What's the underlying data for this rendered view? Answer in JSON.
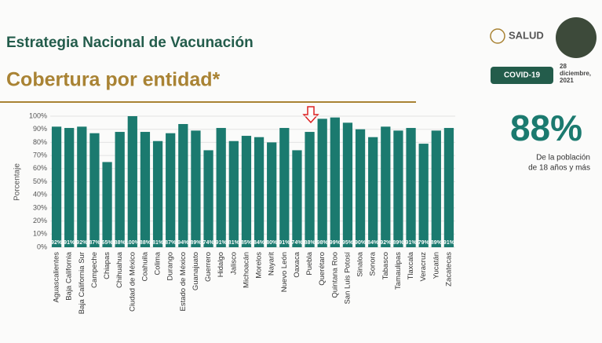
{
  "header": {
    "title": "Estrategia Nacional de Vacunación",
    "subtitle": "Cobertura por entidad*",
    "logo": "SALUD",
    "badge": "COVID-19",
    "date_day": "28",
    "date_month": "diciembre,",
    "date_year": "2021"
  },
  "side": {
    "stat": "88%",
    "note_line1": "De la población",
    "note_line2": "de 18 años y más"
  },
  "chart_data": {
    "type": "bar",
    "ylabel": "Porcentaje",
    "color": "#1b7a6f",
    "grid": true,
    "ylim": [
      0,
      100
    ],
    "yticks": [
      {
        "value": 0,
        "label": "0%"
      },
      {
        "value": 10,
        "label": "10%"
      },
      {
        "value": 20,
        "label": "20%"
      },
      {
        "value": 30,
        "label": "30%"
      },
      {
        "value": 40,
        "label": "40%"
      },
      {
        "value": 50,
        "label": "50%"
      },
      {
        "value": 60,
        "label": "60%"
      },
      {
        "value": 70,
        "label": "70%"
      },
      {
        "value": 80,
        "label": "80%"
      },
      {
        "value": 90,
        "label": "90%"
      },
      {
        "value": 100,
        "label": "100%"
      }
    ],
    "categories": [
      "Aguascalientes",
      "Baja California",
      "Baja California Sur",
      "Campeche",
      "Chiapas",
      "Chihuahua",
      "Ciudad de México",
      "Coahuila",
      "Colima",
      "Durango",
      "Estado de México",
      "Guanajuato",
      "Guerrero",
      "Hidalgo",
      "Jalisco",
      "Michoacán",
      "Morelos",
      "Nayarit",
      "Nuevo León",
      "Oaxaca",
      "Puebla",
      "Querétaro",
      "Quintana Roo",
      "San Luis Potosí",
      "Sinaloa",
      "Sonora",
      "Tabasco",
      "Tamaulipas",
      "Tlaxcala",
      "Veracruz",
      "Yucatán",
      "Zacatecas"
    ],
    "values": [
      92,
      91,
      92,
      87,
      65,
      88,
      100,
      88,
      81,
      87,
      94,
      89,
      74,
      91,
      81,
      85,
      84,
      80,
      91,
      74,
      88,
      98,
      99,
      95,
      90,
      84,
      92,
      89,
      91,
      79,
      89,
      91
    ],
    "value_labels": [
      "92%",
      "91%",
      "92%",
      "87%",
      "65%",
      "88%",
      "100%",
      "88%",
      "81%",
      "87%",
      "94%",
      "89%",
      "74%",
      "91%",
      "81%",
      "85%",
      "84%",
      "80%",
      "91%",
      "74%",
      "88%",
      "98%",
      "99%",
      "95%",
      "90%",
      "84%",
      "92%",
      "89%",
      "91%",
      "79%",
      "89%",
      "91%"
    ]
  }
}
